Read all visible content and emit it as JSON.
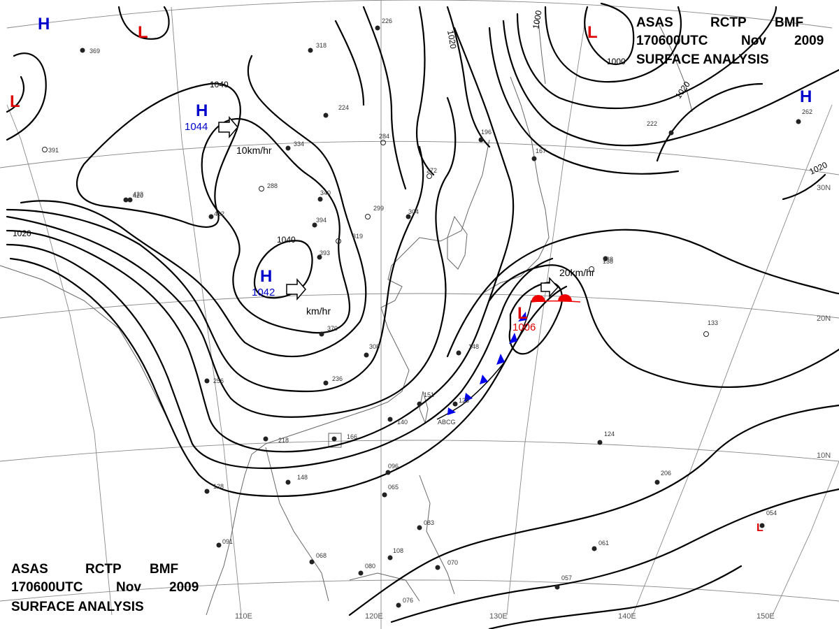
{
  "title_block_top": {
    "line1": [
      "ASAS",
      "RCTP",
      "BMF"
    ],
    "line2": [
      "170600UTC",
      "Nov",
      "2009"
    ],
    "line3": "SURFACE ANALYSIS"
  },
  "title_block_bottom": {
    "line1": [
      "ASAS",
      "RCTP",
      "BMF"
    ],
    "line2": [
      "170600UTC",
      "Nov",
      "2009"
    ],
    "line3": "SURFACE ANALYSIS"
  },
  "colors": {
    "high": "#0000cc",
    "low": "#dd0000",
    "isobar": "#000000",
    "grid": "#888888",
    "coast": "#666666",
    "cold_front": "#0000ee",
    "warm_front": "#ee0000"
  },
  "pressure_centers": [
    {
      "type": "high",
      "letter": "H",
      "value": ""
    },
    {
      "type": "low",
      "letter": "L",
      "value": ""
    },
    {
      "type": "low",
      "letter": "L",
      "value": ""
    },
    {
      "type": "high",
      "letter": "H",
      "value": "1044"
    },
    {
      "type": "high",
      "letter": "H",
      "value": "1042"
    },
    {
      "type": "low",
      "letter": "L",
      "value": ""
    },
    {
      "type": "high",
      "letter": "H",
      "value": ""
    },
    {
      "type": "low",
      "letter": "L",
      "value": "1006"
    },
    {
      "type": "low",
      "letter": "L",
      "value": ""
    }
  ],
  "isobar_labels": [
    "1040",
    "1020",
    "1040",
    "1020",
    "1000",
    "1000",
    "1020",
    "1020"
  ],
  "motion_labels": [
    "10km/hr",
    "km/hr",
    "20km/hr"
  ],
  "longitude_labels": [
    "110E",
    "120E",
    "130E",
    "140E",
    "150E"
  ],
  "latitude_labels": [
    "30N",
    "20N",
    "10N"
  ],
  "station_texts": [
    "226",
    "318",
    "224",
    "284",
    "272",
    "196",
    "167",
    "334",
    "288",
    "340",
    "394",
    "393",
    "319",
    "299",
    "304",
    "420",
    "412",
    "370",
    "308",
    "256",
    "148",
    "236",
    "218",
    "148",
    "151",
    "140",
    "166",
    "138",
    "133",
    "125",
    "124",
    "096",
    "065",
    "083",
    "068",
    "080",
    "108",
    "070",
    "076",
    "057",
    "061",
    "054",
    "091",
    "128",
    "369",
    "391",
    "423",
    "138",
    "262",
    "222",
    "206"
  ],
  "front_label": "ABCG"
}
